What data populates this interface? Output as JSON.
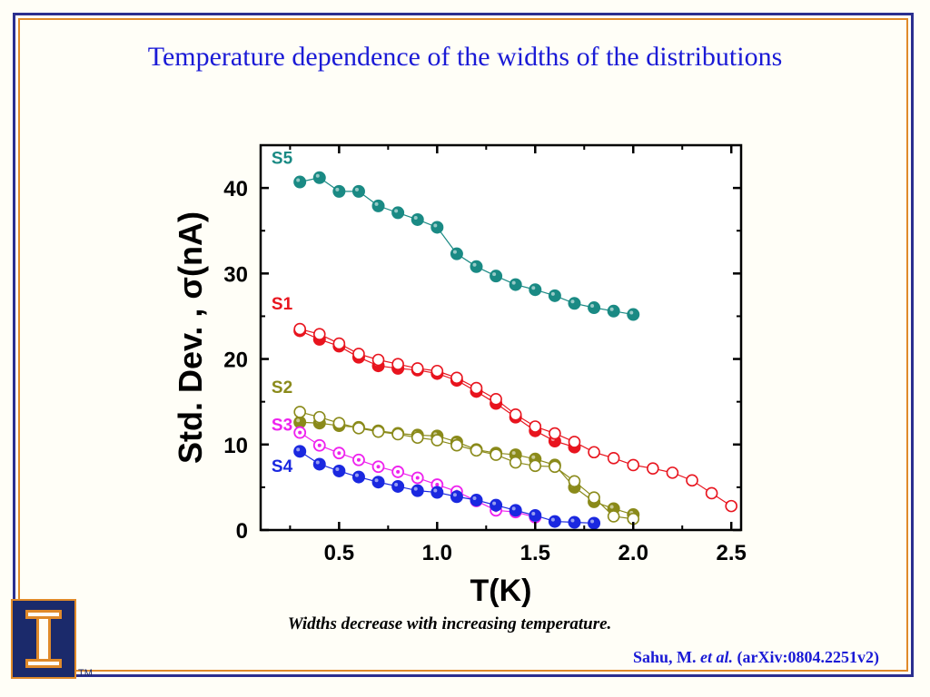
{
  "title": "Temperature dependence of the widths of the distributions",
  "caption": "Widths decrease with increasing temperature.",
  "citation": {
    "author": "Sahu, M. ",
    "etal": "et al.",
    "ref": " (arXiv:0804.2251v2)"
  },
  "logo": {
    "letter": "I",
    "tm": "TM"
  },
  "colors": {
    "title": "#1a1ad6",
    "frame_outer": "#2b2f8f",
    "frame_inner": "#e08a2a",
    "S5": "#1a8a84",
    "S1": "#e8141e",
    "S2": "#8a8a1a",
    "S3": "#ee22ee",
    "S4": "#1a28e0"
  },
  "chart_data": {
    "type": "scatter",
    "xlabel": "T(K)",
    "ylabel": "Std. Dev. , σ(nA)",
    "xlim": [
      0.1,
      2.55
    ],
    "ylim": [
      0,
      45
    ],
    "xticks": [
      "0.5",
      "1.0",
      "1.5",
      "2.0",
      "2.5"
    ],
    "yticks": [
      "0",
      "10",
      "20",
      "30",
      "40"
    ],
    "xtick_values": [
      0.5,
      1.0,
      1.5,
      2.0,
      2.5
    ],
    "ytick_values": [
      0,
      10,
      20,
      30,
      40
    ],
    "grid": false,
    "series": [
      {
        "name": "S5",
        "color": "#1a8a84",
        "marker": "filled",
        "x": [
          0.3,
          0.4,
          0.5,
          0.6,
          0.7,
          0.8,
          0.9,
          1.0,
          1.1,
          1.2,
          1.3,
          1.4,
          1.5,
          1.6,
          1.7,
          1.8,
          1.9,
          2.0
        ],
        "y": [
          40.7,
          41.2,
          39.6,
          39.6,
          37.9,
          37.1,
          36.3,
          35.4,
          32.3,
          30.8,
          29.7,
          28.7,
          28.1,
          27.4,
          26.5,
          26.0,
          25.6,
          25.2
        ]
      },
      {
        "name": "S1",
        "color": "#e8141e",
        "marker": "filled",
        "x": [
          0.3,
          0.4,
          0.5,
          0.6,
          0.7,
          0.8,
          0.9,
          1.0,
          1.1,
          1.2,
          1.3,
          1.4,
          1.5,
          1.6,
          1.7
        ],
        "y": [
          23.3,
          22.3,
          21.5,
          20.2,
          19.2,
          18.9,
          18.7,
          18.3,
          17.5,
          16.2,
          14.8,
          13.2,
          11.6,
          10.4,
          9.7
        ]
      },
      {
        "name": "",
        "color": "#e8141e",
        "marker": "open",
        "x": [
          0.3,
          0.4,
          0.5,
          0.6,
          0.7,
          0.8,
          0.9,
          1.0,
          1.1,
          1.2,
          1.3,
          1.4,
          1.5,
          1.6,
          1.7,
          1.8,
          1.9,
          2.0,
          2.1,
          2.2,
          2.3,
          2.4,
          2.5
        ],
        "y": [
          23.5,
          22.9,
          21.8,
          20.6,
          19.9,
          19.4,
          18.9,
          18.6,
          17.8,
          16.6,
          15.3,
          13.5,
          12.1,
          11.3,
          10.3,
          9.1,
          8.4,
          7.6,
          7.2,
          6.7,
          5.8,
          4.3,
          2.8
        ]
      },
      {
        "name": "S2",
        "color": "#8a8a1a",
        "marker": "filled",
        "x": [
          0.3,
          0.4,
          0.5,
          0.6,
          0.7,
          0.8,
          0.9,
          1.0,
          1.1,
          1.2,
          1.3,
          1.4,
          1.5,
          1.6,
          1.7,
          1.8,
          1.9,
          2.0
        ],
        "y": [
          12.6,
          12.5,
          12.2,
          12.0,
          11.6,
          11.3,
          11.1,
          11.0,
          10.3,
          9.4,
          9.0,
          8.8,
          8.3,
          7.6,
          5.0,
          3.3,
          2.5,
          1.8
        ]
      },
      {
        "name": "",
        "color": "#8a8a1a",
        "marker": "open",
        "x": [
          0.3,
          0.4,
          0.5,
          0.6,
          0.7,
          0.8,
          0.9,
          1.0,
          1.1,
          1.2,
          1.3,
          1.4,
          1.5,
          1.6,
          1.7,
          1.8,
          1.9,
          2.0
        ],
        "y": [
          13.8,
          13.2,
          12.5,
          11.9,
          11.5,
          11.2,
          10.8,
          10.5,
          9.9,
          9.3,
          8.8,
          7.9,
          7.5,
          7.4,
          5.7,
          3.8,
          1.6,
          1.3
        ]
      },
      {
        "name": "S3",
        "color": "#ee22ee",
        "marker": "dot",
        "x": [
          0.3,
          0.4,
          0.5,
          0.6,
          0.7,
          0.8,
          0.9,
          1.0,
          1.1,
          1.2,
          1.3,
          1.4,
          1.5
        ],
        "y": [
          11.4,
          9.9,
          9.0,
          8.2,
          7.4,
          6.8,
          6.1,
          5.3,
          4.5,
          3.4,
          2.3,
          2.1,
          1.5
        ]
      },
      {
        "name": "S4",
        "color": "#1a28e0",
        "marker": "filled",
        "x": [
          0.3,
          0.4,
          0.5,
          0.6,
          0.7,
          0.8,
          0.9,
          1.0,
          1.1,
          1.2,
          1.3,
          1.4,
          1.5,
          1.6,
          1.7,
          1.8
        ],
        "y": [
          9.2,
          7.7,
          6.9,
          6.2,
          5.6,
          5.1,
          4.6,
          4.4,
          3.9,
          3.5,
          2.9,
          2.3,
          1.7,
          1.0,
          0.9,
          0.8
        ]
      }
    ],
    "labels": [
      {
        "text": "S5",
        "series": "S5",
        "x": 0.22,
        "y": 42.8
      },
      {
        "text": "S1",
        "series": "S1",
        "x": 0.22,
        "y": 25.8
      },
      {
        "text": "S2",
        "series": "S2",
        "x": 0.22,
        "y": 16.0
      },
      {
        "text": "S3",
        "series": "S3",
        "x": 0.22,
        "y": 11.6
      },
      {
        "text": "S4",
        "series": "S4",
        "x": 0.22,
        "y": 6.8
      }
    ]
  }
}
